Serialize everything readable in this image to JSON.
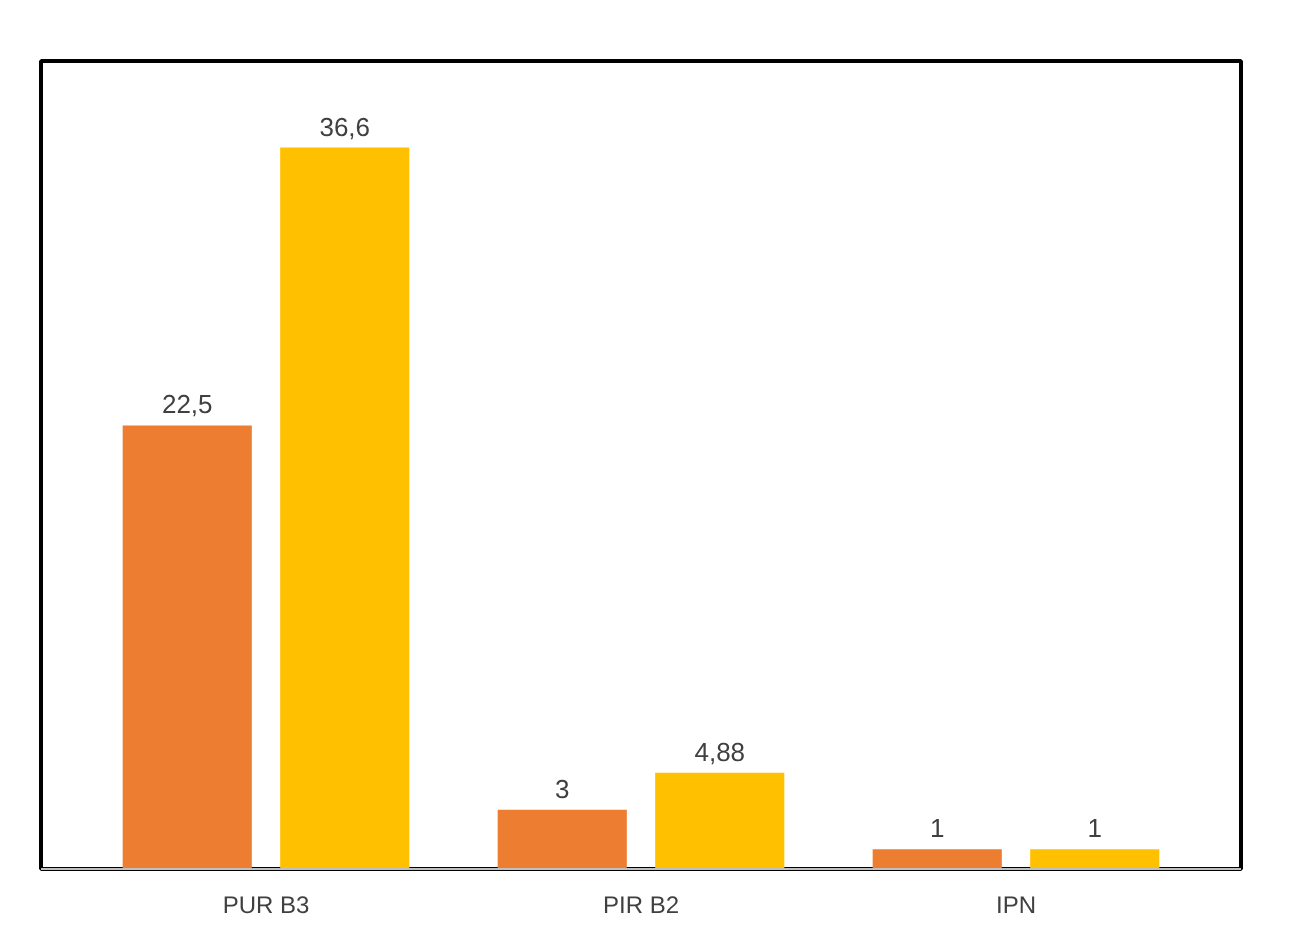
{
  "chart_data": {
    "type": "bar",
    "categories": [
      "PUR B3",
      "PIR B2",
      "IPN"
    ],
    "series": [
      {
        "color": "#ed7d31",
        "values": [
          22.5,
          3,
          1
        ],
        "value_labels": [
          "22,5",
          "3",
          "1"
        ]
      },
      {
        "color": "#ffc000",
        "values": [
          36.6,
          4.88,
          1
        ],
        "value_labels": [
          "36,6",
          "4,88",
          "1"
        ]
      }
    ],
    "grid": false,
    "tick_labels": "x"
  }
}
